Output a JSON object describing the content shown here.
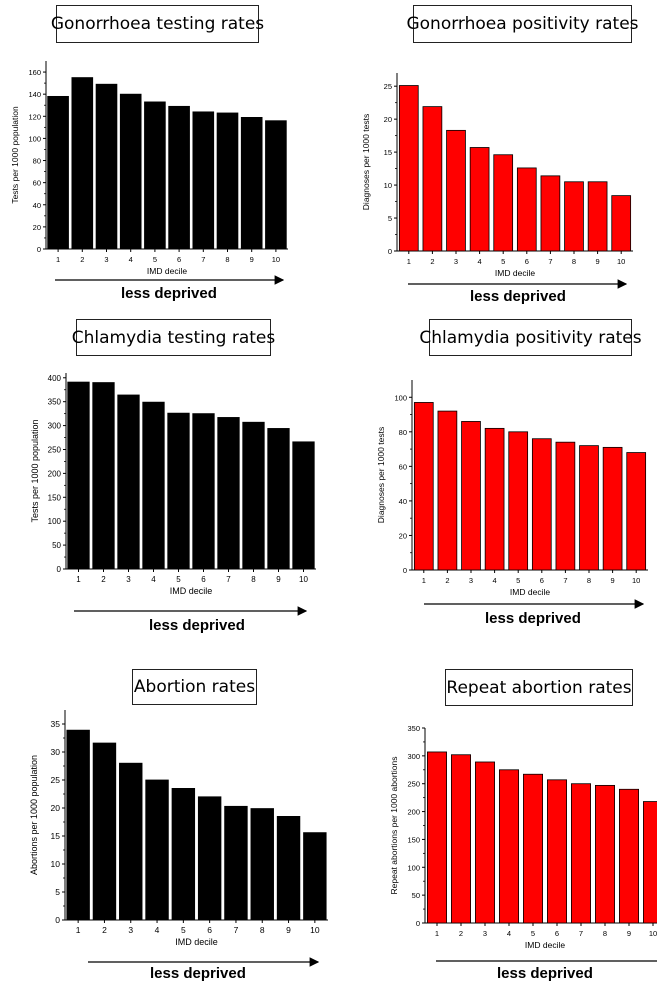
{
  "arrow_label": "less deprived",
  "chart_data": [
    {
      "type": "bar",
      "title": "Gonorrhoea testing rates",
      "xlabel": "IMD decile",
      "ylabel": "Tests per 1000 population",
      "categories": [
        "1",
        "2",
        "3",
        "4",
        "5",
        "6",
        "7",
        "8",
        "9",
        "10"
      ],
      "values": [
        138,
        155,
        149,
        140,
        133,
        129,
        124,
        123,
        119,
        116
      ],
      "ylim": [
        0,
        170
      ],
      "yticks": [
        0,
        20,
        40,
        60,
        80,
        100,
        120,
        140,
        160
      ],
      "bar_color": "#000000"
    },
    {
      "type": "bar",
      "title": "Gonorrhoea positivity rates",
      "xlabel": "IMD decile",
      "ylabel": "Diagnoses per 1000 tests",
      "categories": [
        "1",
        "2",
        "3",
        "4",
        "5",
        "6",
        "7",
        "8",
        "9",
        "10"
      ],
      "values": [
        25.1,
        21.9,
        18.3,
        15.7,
        14.6,
        12.6,
        11.4,
        10.5,
        10.5,
        8.4
      ],
      "ylim": [
        0,
        27
      ],
      "yticks": [
        0,
        5,
        10,
        15,
        20,
        25
      ],
      "bar_color": "#ff0000"
    },
    {
      "type": "bar",
      "title": "Chlamydia testing rates",
      "xlabel": "IMD decile",
      "ylabel": "Tests per 1000 population",
      "categories": [
        "1",
        "2",
        "3",
        "4",
        "5",
        "6",
        "7",
        "8",
        "9",
        "10"
      ],
      "values": [
        391,
        390,
        364,
        349,
        326,
        325,
        317,
        307,
        294,
        266
      ],
      "ylim": [
        0,
        410
      ],
      "yticks": [
        0,
        50,
        100,
        150,
        200,
        250,
        300,
        350,
        400
      ],
      "bar_color": "#000000"
    },
    {
      "type": "bar",
      "title": "Chlamydia positivity rates",
      "xlabel": "IMD decile",
      "ylabel": "Diagnoses per 1000 tests",
      "categories": [
        "1",
        "2",
        "3",
        "4",
        "5",
        "6",
        "7",
        "8",
        "9",
        "10"
      ],
      "values": [
        97,
        92,
        86,
        82,
        80,
        76,
        74,
        72,
        71,
        68
      ],
      "ylim": [
        0,
        110
      ],
      "yticks": [
        0,
        20,
        40,
        60,
        80,
        100
      ],
      "bar_color": "#ff0000"
    },
    {
      "type": "bar",
      "title": "Abortion rates",
      "xlabel": "IMD decile",
      "ylabel": "Abortions per 1000 population",
      "categories": [
        "1",
        "2",
        "3",
        "4",
        "5",
        "6",
        "7",
        "8",
        "9",
        "10"
      ],
      "values": [
        33.9,
        31.6,
        28.0,
        25.0,
        23.5,
        22.0,
        20.3,
        19.9,
        18.5,
        15.6
      ],
      "ylim": [
        0,
        37.5
      ],
      "yticks": [
        0,
        5,
        10,
        15,
        20,
        25,
        30,
        35
      ],
      "bar_color": "#000000"
    },
    {
      "type": "bar",
      "title": "Repeat abortion rates",
      "xlabel": "IMD decile",
      "ylabel": "Repeat abortions per 1000 abortions",
      "categories": [
        "1",
        "2",
        "3",
        "4",
        "5",
        "6",
        "7",
        "8",
        "9",
        "10"
      ],
      "values": [
        307,
        302,
        289,
        275,
        267,
        257,
        250,
        247,
        240,
        218
      ],
      "ylim": [
        0,
        350
      ],
      "yticks": [
        0,
        50,
        100,
        150,
        200,
        250,
        300,
        350
      ],
      "bar_color": "#ff0000"
    }
  ]
}
